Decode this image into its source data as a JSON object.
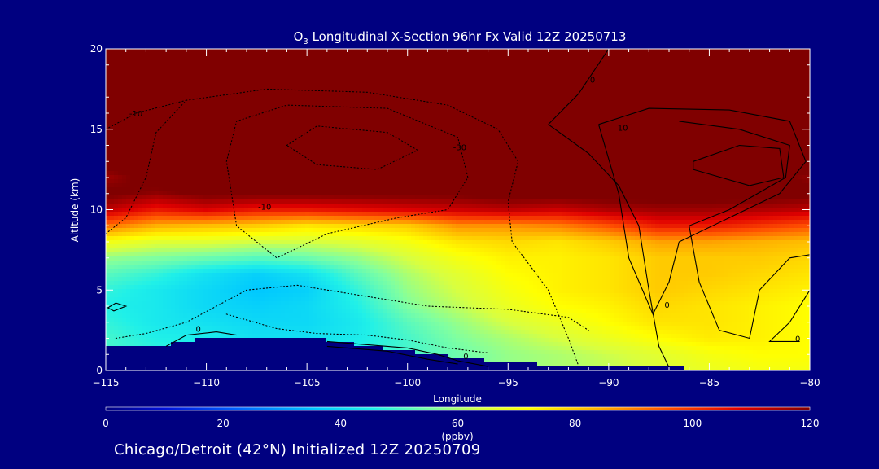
{
  "chart_data": {
    "type": "heatmap",
    "title": {
      "prefix": "O",
      "subscript": "3",
      "rest": " Longitudinal X-Section 96hr  Fx Valid 12Z 20250713"
    },
    "xlabel": "Longitude",
    "ylabel": "Altitude (km)",
    "xlim": [
      -115,
      -80
    ],
    "ylim": [
      0,
      20
    ],
    "x_ticks": [
      -115,
      -110,
      -105,
      -100,
      -95,
      -90,
      -85,
      -80
    ],
    "x_tick_labels": [
      "−115",
      "−110",
      "−105",
      "−100",
      "−95",
      "−90",
      "−85",
      "−80"
    ],
    "y_ticks": [
      0,
      5,
      10,
      15,
      20
    ],
    "y_tick_labels": [
      "0",
      "5",
      "10",
      "15",
      "20"
    ],
    "z_unit": "(ppbv)",
    "colorbar": {
      "range": [
        0,
        120
      ],
      "ticks": [
        0,
        20,
        40,
        60,
        80,
        100,
        120
      ],
      "tick_labels": [
        "0",
        "20",
        "40",
        "60",
        "80",
        "100",
        "120"
      ],
      "stops": [
        {
          "v": 0,
          "color": "#000080"
        },
        {
          "v": 10,
          "color": "#0010d8"
        },
        {
          "v": 22,
          "color": "#0060ff"
        },
        {
          "v": 36,
          "color": "#00c8ff"
        },
        {
          "v": 46,
          "color": "#20f0e8"
        },
        {
          "v": 56,
          "color": "#80ffa0"
        },
        {
          "v": 64,
          "color": "#d8ff40"
        },
        {
          "v": 72,
          "color": "#ffff00"
        },
        {
          "v": 84,
          "color": "#ffb000"
        },
        {
          "v": 96,
          "color": "#ff5000"
        },
        {
          "v": 108,
          "color": "#e00000"
        },
        {
          "v": 120,
          "color": "#800000"
        }
      ]
    },
    "field": {
      "lons": [
        -115,
        -112.5,
        -110,
        -107.5,
        -105,
        -102.5,
        -100,
        -97.5,
        -95,
        -92.5,
        -90,
        -87.5,
        -85,
        -82.5,
        -80
      ],
      "alts": [
        0,
        1,
        2,
        3,
        4,
        5,
        6,
        7,
        8,
        9,
        10,
        11,
        12,
        13,
        14,
        15,
        16,
        17,
        18,
        19,
        20
      ],
      "terrain_km": [
        1.6,
        1.5,
        2.0,
        2.1,
        2.1,
        1.6,
        1.2,
        0.8,
        0.5,
        0.3,
        0.2,
        0.15,
        0.1,
        0.05,
        0.05
      ],
      "ppbv": [
        [
          50,
          48,
          48,
          48,
          48,
          48,
          52,
          55,
          58,
          60,
          62,
          65,
          68,
          70,
          70
        ],
        [
          50,
          48,
          46,
          44,
          45,
          47,
          50,
          54,
          58,
          60,
          63,
          66,
          70,
          72,
          72
        ],
        [
          50,
          46,
          45,
          42,
          42,
          45,
          50,
          56,
          60,
          64,
          68,
          72,
          75,
          74,
          72
        ],
        [
          48,
          44,
          42,
          40,
          40,
          44,
          52,
          58,
          64,
          68,
          72,
          76,
          76,
          74,
          72
        ],
        [
          46,
          44,
          40,
          38,
          40,
          46,
          56,
          62,
          68,
          72,
          74,
          78,
          76,
          74,
          72
        ],
        [
          48,
          44,
          40,
          36,
          38,
          48,
          58,
          64,
          70,
          74,
          76,
          80,
          78,
          76,
          74
        ],
        [
          52,
          48,
          42,
          38,
          42,
          52,
          60,
          66,
          72,
          74,
          76,
          80,
          80,
          78,
          76
        ],
        [
          58,
          56,
          54,
          52,
          54,
          58,
          64,
          70,
          74,
          74,
          76,
          80,
          80,
          80,
          78
        ],
        [
          70,
          66,
          66,
          64,
          64,
          66,
          70,
          76,
          78,
          76,
          80,
          86,
          86,
          84,
          82
        ],
        [
          92,
          84,
          82,
          80,
          76,
          78,
          80,
          88,
          88,
          90,
          96,
          104,
          104,
          100,
          96
        ],
        [
          112,
          104,
          108,
          104,
          104,
          106,
          108,
          110,
          112,
          110,
          114,
          116,
          116,
          114,
          112
        ],
        [
          122,
          118,
          122,
          122,
          122,
          122,
          122,
          122,
          124,
          124,
          124,
          124,
          124,
          124,
          122
        ],
        [
          116,
          124,
          124,
          124,
          124,
          124,
          124,
          124,
          124,
          124,
          124,
          124,
          124,
          124,
          118
        ],
        [
          124,
          124,
          124,
          124,
          124,
          124,
          124,
          124,
          124,
          124,
          124,
          124,
          124,
          124,
          124
        ],
        [
          124,
          124,
          124,
          124,
          124,
          124,
          124,
          124,
          124,
          124,
          124,
          124,
          124,
          124,
          124
        ],
        [
          124,
          124,
          124,
          124,
          124,
          124,
          124,
          124,
          124,
          124,
          124,
          124,
          124,
          124,
          124
        ],
        [
          124,
          124,
          124,
          124,
          124,
          124,
          124,
          124,
          124,
          124,
          124,
          124,
          124,
          124,
          124
        ],
        [
          124,
          124,
          124,
          124,
          124,
          124,
          124,
          124,
          124,
          124,
          124,
          124,
          124,
          124,
          124
        ],
        [
          124,
          124,
          124,
          124,
          124,
          124,
          124,
          124,
          124,
          124,
          124,
          124,
          124,
          124,
          124
        ],
        [
          124,
          124,
          124,
          124,
          124,
          124,
          124,
          124,
          124,
          124,
          124,
          124,
          124,
          124,
          124
        ],
        [
          124,
          124,
          124,
          124,
          124,
          124,
          124,
          124,
          124,
          124,
          124,
          124,
          124,
          124,
          124
        ]
      ]
    },
    "contours": [
      {
        "name": "solid-0-east",
        "style": "solid",
        "points": [
          [
            -93,
            15.3
          ],
          [
            -91.5,
            17.2
          ],
          [
            -90,
            20
          ]
        ]
      },
      {
        "name": "solid-0-east-2",
        "style": "solid",
        "points": [
          [
            -93,
            15.3
          ],
          [
            -91,
            13.5
          ],
          [
            -89.5,
            11.5
          ],
          [
            -88.5,
            9
          ],
          [
            -88,
            5
          ],
          [
            -87.5,
            1.5
          ],
          [
            -87,
            0.2
          ]
        ]
      },
      {
        "name": "solid-10-loop",
        "style": "solid",
        "points": [
          [
            -90.5,
            15.3
          ],
          [
            -88,
            16.3
          ],
          [
            -84,
            16.2
          ],
          [
            -81,
            15.5
          ],
          [
            -80.2,
            13
          ],
          [
            -81.5,
            11
          ],
          [
            -84,
            9.5
          ],
          [
            -86.5,
            8
          ],
          [
            -87,
            5.5
          ],
          [
            -87.8,
            3.5
          ],
          [
            -89,
            7
          ],
          [
            -89.5,
            11
          ],
          [
            -90.5,
            15.3
          ]
        ]
      },
      {
        "name": "solid-20-loop",
        "style": "solid",
        "points": [
          [
            -86.5,
            15.5
          ],
          [
            -83.5,
            15
          ],
          [
            -81,
            14
          ],
          [
            -81.2,
            12
          ],
          [
            -84,
            10
          ],
          [
            -86,
            9
          ],
          [
            -85.5,
            5.5
          ],
          [
            -84.5,
            2.5
          ],
          [
            -83,
            2
          ],
          [
            -82.5,
            5
          ],
          [
            -81,
            7
          ],
          [
            -80,
            7.2
          ]
        ]
      },
      {
        "name": "solid-30-loop",
        "style": "solid",
        "points": [
          [
            -85.8,
            13
          ],
          [
            -83.5,
            14
          ],
          [
            -81.5,
            13.8
          ],
          [
            -81.3,
            12
          ],
          [
            -83,
            11.5
          ],
          [
            -85.8,
            12.5
          ],
          [
            -85.8,
            13
          ]
        ]
      },
      {
        "name": "solid-0-south-east",
        "style": "solid",
        "points": [
          [
            -80,
            5
          ],
          [
            -81,
            3
          ],
          [
            -82,
            1.8
          ],
          [
            -80.5,
            1.8
          ]
        ]
      },
      {
        "name": "solid-0-surface-west",
        "style": "solid",
        "points": [
          [
            -112,
            1.5
          ],
          [
            -111,
            2.2
          ],
          [
            -109.5,
            2.4
          ],
          [
            -108.5,
            2.2
          ]
        ]
      },
      {
        "name": "solid-0-surface-mid",
        "style": "solid",
        "points": [
          [
            -104,
            1.8
          ],
          [
            -102,
            1.6
          ],
          [
            -100,
            1.4
          ],
          [
            -98.5,
            1.0
          ],
          [
            -97.5,
            0.6
          ],
          [
            -96,
            0.25
          ]
        ]
      },
      {
        "name": "solid-0-surface-mid-2",
        "style": "solid",
        "points": [
          [
            -104,
            1.5
          ],
          [
            -101,
            1.2
          ],
          [
            -99,
            0.7
          ],
          [
            -97.5,
            0.4
          ]
        ]
      },
      {
        "name": "solid-0-small-loop",
        "style": "solid",
        "points": [
          [
            -114.5,
            4.2
          ],
          [
            -114,
            4.0
          ],
          [
            -114.6,
            3.7
          ],
          [
            -114.9,
            3.9
          ],
          [
            -114.5,
            4.2
          ]
        ]
      },
      {
        "name": "dotted-neg10-outer",
        "style": "dotted",
        "points": [
          [
            -115,
            8.5
          ],
          [
            -114,
            9.5
          ],
          [
            -113,
            12
          ],
          [
            -112.5,
            14.8
          ],
          [
            -111,
            16.8
          ],
          [
            -107,
            17.5
          ],
          [
            -102,
            17.3
          ],
          [
            -98,
            16.5
          ],
          [
            -95.5,
            15
          ],
          [
            -94.5,
            13
          ],
          [
            -95,
            10.5
          ],
          [
            -94.8,
            8
          ],
          [
            -93,
            5
          ],
          [
            -92,
            2
          ],
          [
            -91.5,
            0.3
          ]
        ]
      },
      {
        "name": "dotted-neg10-left",
        "style": "dotted",
        "points": [
          [
            -115,
            15
          ],
          [
            -113.5,
            16
          ],
          [
            -111,
            16.8
          ]
        ]
      },
      {
        "name": "dotted-neg20",
        "style": "dotted",
        "points": [
          [
            -109,
            13
          ],
          [
            -108.5,
            15.5
          ],
          [
            -106,
            16.5
          ],
          [
            -101,
            16.3
          ],
          [
            -97.5,
            14.5
          ],
          [
            -97,
            12
          ],
          [
            -98,
            10
          ],
          [
            -100.5,
            9.5
          ],
          [
            -104,
            8.5
          ],
          [
            -106.5,
            7
          ],
          [
            -108.5,
            9
          ],
          [
            -109,
            13
          ]
        ]
      },
      {
        "name": "dotted-neg30",
        "style": "dotted",
        "points": [
          [
            -106,
            14
          ],
          [
            -104.5,
            15.2
          ],
          [
            -101,
            14.8
          ],
          [
            -99.5,
            13.7
          ],
          [
            -101.5,
            12.5
          ],
          [
            -104.5,
            12.8
          ],
          [
            -106,
            14
          ]
        ]
      },
      {
        "name": "dotted-low",
        "style": "dotted",
        "points": [
          [
            -114.5,
            2.0
          ],
          [
            -113,
            2.3
          ],
          [
            -111,
            3
          ],
          [
            -108,
            5
          ],
          [
            -105.5,
            5.3
          ],
          [
            -103,
            4.8
          ],
          [
            -99,
            4
          ],
          [
            -95,
            3.8
          ],
          [
            -92,
            3.3
          ],
          [
            -91,
            2.5
          ]
        ]
      },
      {
        "name": "dotted-lower",
        "style": "dotted",
        "points": [
          [
            -109,
            3.5
          ],
          [
            -106.5,
            2.6
          ],
          [
            -104.5,
            2.3
          ],
          [
            -102,
            2.2
          ],
          [
            -100,
            1.9
          ],
          [
            -98,
            1.4
          ],
          [
            -96,
            1.1
          ]
        ]
      }
    ],
    "contour_labels": [
      {
        "text": "0",
        "x": -90.8,
        "y": 17.9
      },
      {
        "text": "-10",
        "x": -113.5,
        "y": 15.8
      },
      {
        "text": "-10",
        "x": -107.1,
        "y": 10.0
      },
      {
        "text": "-30",
        "x": -97.4,
        "y": 13.7
      },
      {
        "text": "10",
        "x": -89.3,
        "y": 14.9
      },
      {
        "text": "0",
        "x": -87.1,
        "y": 3.9
      },
      {
        "text": "0",
        "x": -110.4,
        "y": 2.4
      },
      {
        "text": "0",
        "x": -97.1,
        "y": 0.7
      },
      {
        "text": "0",
        "x": -80.6,
        "y": 1.8
      }
    ]
  },
  "footer": {
    "caption": "Chicago/Detroit (42°N) Initialized 12Z 20250709"
  }
}
